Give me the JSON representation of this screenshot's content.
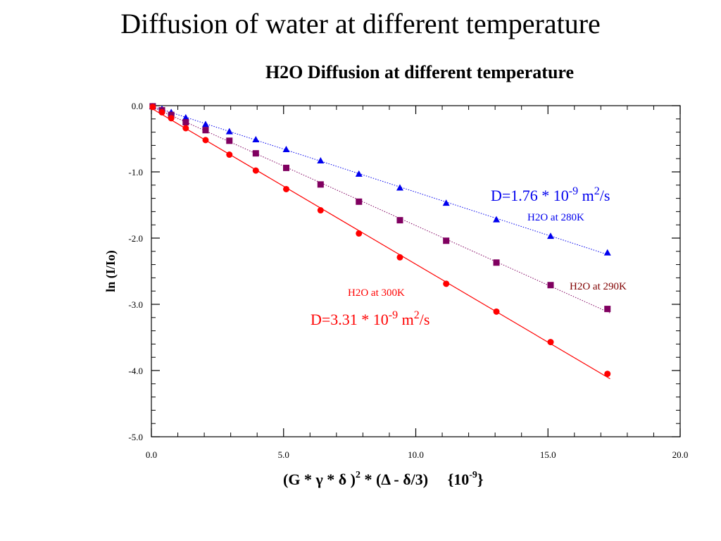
{
  "slide": {
    "title": "Diffusion of water at different temperature"
  },
  "chart_data": {
    "type": "scatter",
    "title": "H2O Diffusion at different temperature",
    "xlabel": {
      "part1": "(G  * γ * δ )",
      "part1_sup": "2",
      "part2": " * (Δ - δ/3)     {10",
      "part2_sup": "-9",
      "part3": "}"
    },
    "ylabel": "ln  (I/Io)",
    "xlim": [
      0,
      20
    ],
    "ylim": [
      -5,
      0
    ],
    "x_ticks": [
      "0.0",
      "5.0",
      "10.0",
      "15.0",
      "20.0"
    ],
    "y_ticks": [
      "0.0",
      "-1.0",
      "-2.0",
      "-3.0",
      "-4.0",
      "-5.0"
    ],
    "x_tick_values": [
      0,
      5,
      10,
      15,
      20
    ],
    "y_tick_values": [
      0,
      -1,
      -2,
      -3,
      -4,
      -5
    ],
    "grid": false,
    "series": [
      {
        "name": "H2O at 280K",
        "color": "#0000ee",
        "marker": "triangle",
        "fit": "dotted",
        "x": [
          0.05,
          0.4,
          0.75,
          1.3,
          2.05,
          2.95,
          3.95,
          5.1,
          6.4,
          7.85,
          9.4,
          11.15,
          13.05,
          15.1,
          17.25
        ],
        "y": [
          -0.01,
          -0.05,
          -0.1,
          -0.18,
          -0.28,
          -0.39,
          -0.51,
          -0.66,
          -0.83,
          -1.03,
          -1.24,
          -1.47,
          -1.72,
          -1.97,
          -2.22
        ]
      },
      {
        "name": "H2O at 290K",
        "color": "#800060",
        "marker": "square",
        "fit": "dotted",
        "x": [
          0.05,
          0.4,
          0.75,
          1.3,
          2.05,
          2.95,
          3.95,
          5.1,
          6.4,
          7.85,
          9.4,
          11.15,
          13.05,
          15.1,
          17.25
        ],
        "y": [
          -0.01,
          -0.07,
          -0.14,
          -0.25,
          -0.37,
          -0.53,
          -0.72,
          -0.94,
          -1.19,
          -1.45,
          -1.73,
          -2.04,
          -2.37,
          -2.71,
          -3.07
        ]
      },
      {
        "name": "H2O at 300K",
        "color": "#ff0000",
        "marker": "circle",
        "fit": "solid",
        "x": [
          0.05,
          0.4,
          0.75,
          1.3,
          2.05,
          2.95,
          3.95,
          5.1,
          6.4,
          7.85,
          9.4,
          11.15,
          13.05,
          15.1,
          17.25
        ],
        "y": [
          -0.02,
          -0.1,
          -0.19,
          -0.34,
          -0.52,
          -0.74,
          -0.98,
          -1.26,
          -1.58,
          -1.93,
          -2.29,
          -2.69,
          -3.11,
          -3.57,
          -4.05
        ]
      }
    ],
    "annotations": [
      {
        "name": "eq-280k",
        "series": "H2O at 280K",
        "color": "#0000ee",
        "eq_part1": "D=1.76 * 10",
        "eq_sup1": "-9",
        "eq_part2": " m",
        "eq_sup2": "2",
        "eq_part3": "/s"
      },
      {
        "name": "eq-300k",
        "series": "H2O at 300K",
        "color": "#ff0000",
        "eq_part1": "D=3.31 * 10",
        "eq_sup1": "-9",
        "eq_part2": " m",
        "eq_sup2": "2",
        "eq_part3": "/s"
      }
    ]
  }
}
